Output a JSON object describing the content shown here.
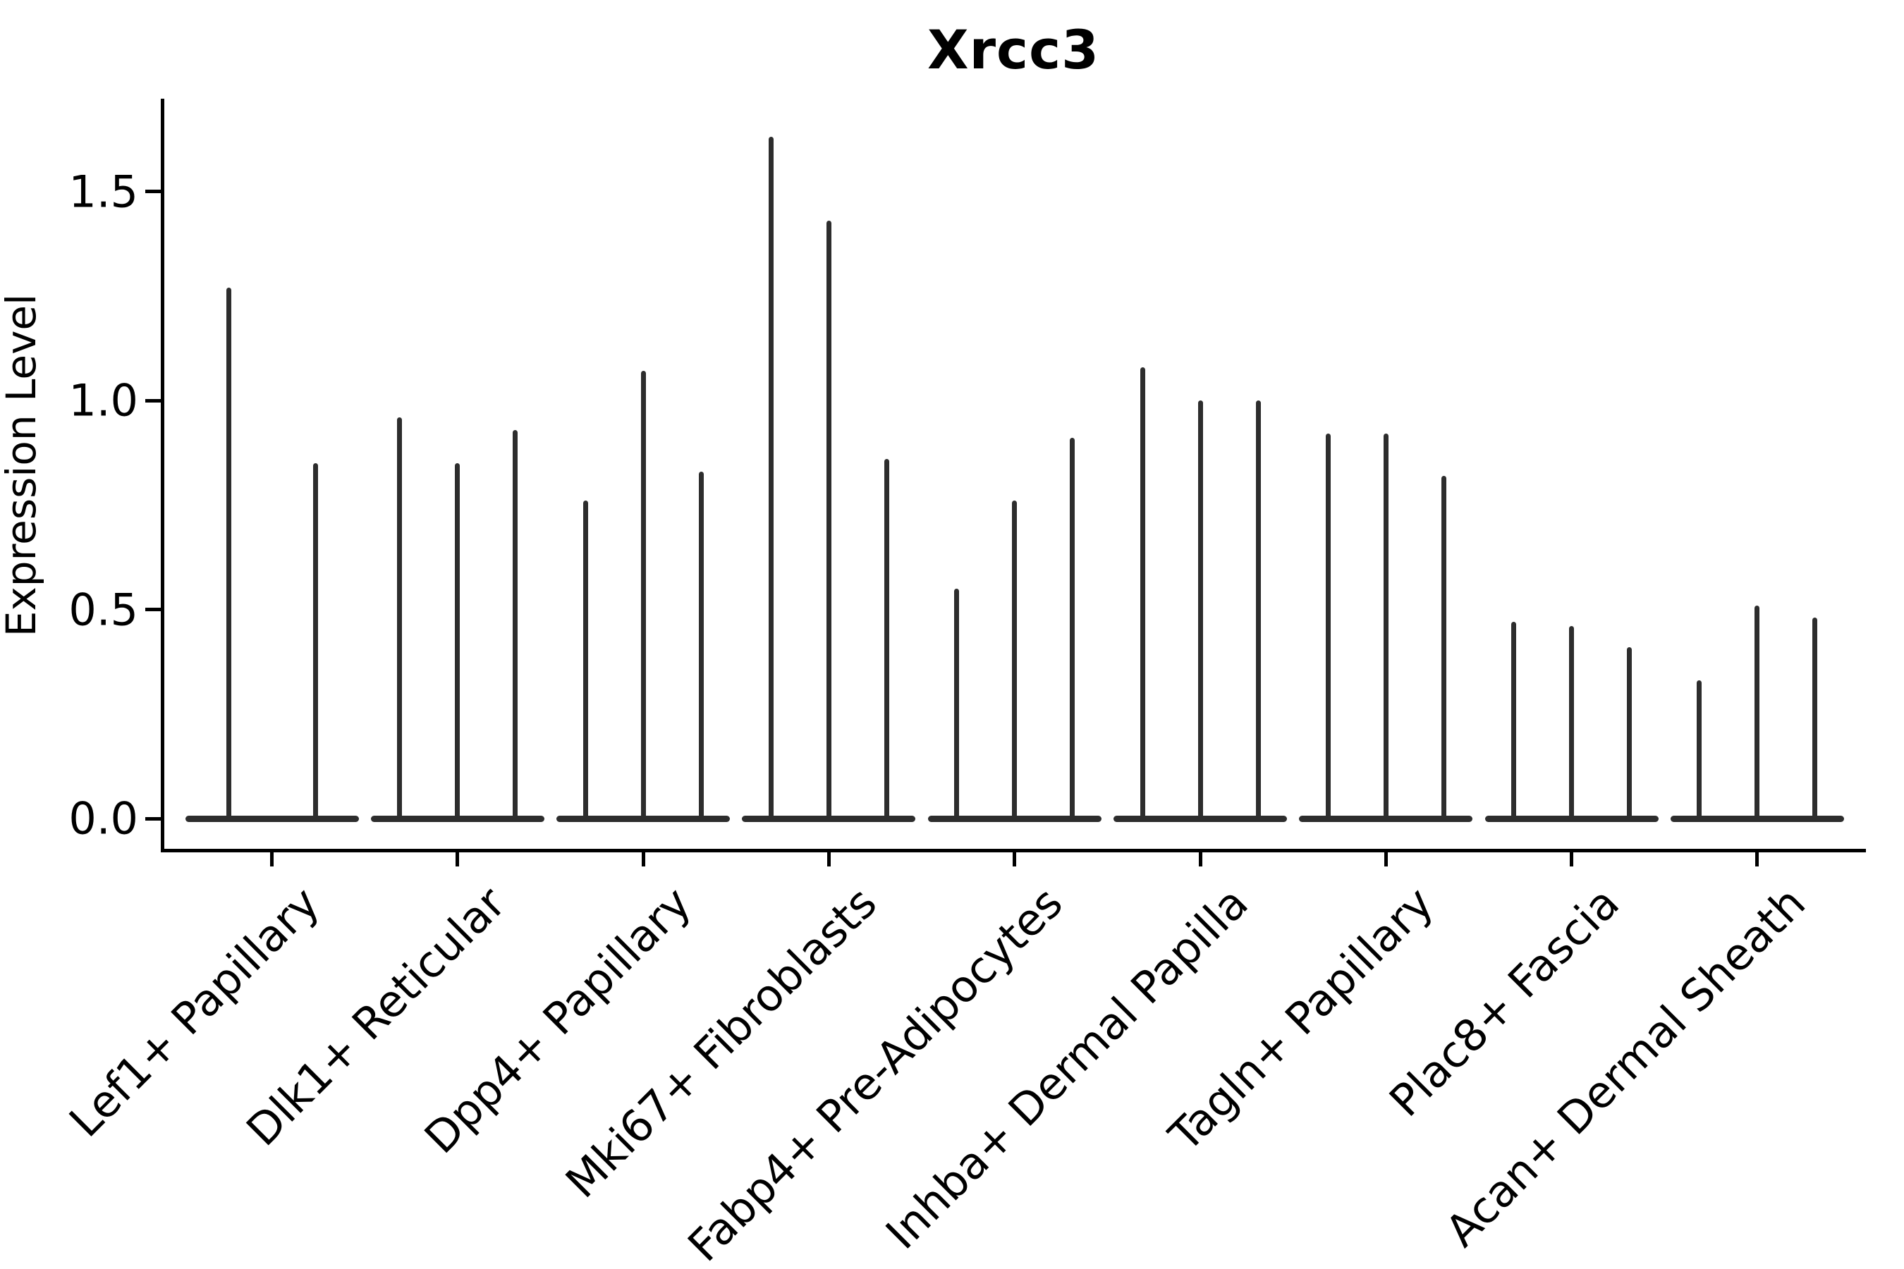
{
  "chart_data": {
    "type": "violin",
    "title": "Xrcc3",
    "xlabel": "",
    "ylabel": "Expression Level",
    "ylim": [
      -0.07,
      1.72
    ],
    "yticks": [
      0.0,
      0.5,
      1.0,
      1.5
    ],
    "ytick_labels": [
      "0.0",
      "0.5",
      "1.0",
      "1.5"
    ],
    "grid": false,
    "legend_position": "none",
    "violin_style": "thin-spike violins, near-zero density bulge at baseline with long narrow upper tails",
    "colors": {
      "violin_fill": "#2d2d2d",
      "axis": "#000000",
      "text": "#000000",
      "background": "#ffffff"
    },
    "categories": [
      "Lef1+ Papillary",
      "Dlk1+ Reticular",
      "Dpp4+ Papillary",
      "Mki67+ Fibroblasts",
      "Fabp4+ Pre-Adipocytes",
      "Inhba+ Dermal Papilla",
      "Tagln+ Papillary",
      "Plac8+ Fascia",
      "Acan+ Dermal Sheath"
    ],
    "series": [
      {
        "category": "Lef1+ Papillary",
        "violin_max_heights": [
          1.27,
          0.85
        ]
      },
      {
        "category": "Dlk1+ Reticular",
        "violin_max_heights": [
          0.96,
          0.85,
          0.93
        ]
      },
      {
        "category": "Dpp4+ Papillary",
        "violin_max_heights": [
          0.76,
          1.07,
          0.83
        ]
      },
      {
        "category": "Mki67+ Fibroblasts",
        "violin_max_heights": [
          1.63,
          1.43,
          0.86
        ]
      },
      {
        "category": "Fabp4+ Pre-Adipocytes",
        "violin_max_heights": [
          0.55,
          0.76,
          0.91
        ]
      },
      {
        "category": "Inhba+ Dermal Papilla",
        "violin_max_heights": [
          1.08,
          1.0,
          1.0
        ]
      },
      {
        "category": "Tagln+ Papillary",
        "violin_max_heights": [
          0.92,
          0.92,
          0.82
        ]
      },
      {
        "category": "Plac8+ Fascia",
        "violin_max_heights": [
          0.47,
          0.46,
          0.41
        ]
      },
      {
        "category": "Acan+ Dermal Sheath",
        "violin_max_heights": [
          0.33,
          0.51,
          0.48
        ]
      }
    ]
  }
}
